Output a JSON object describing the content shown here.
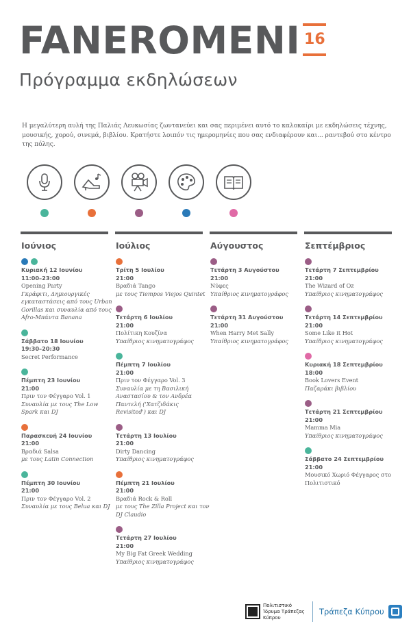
{
  "header": {
    "brand": "FANEROMENI",
    "year": "16",
    "subtitle": "Πρόγραμμα εκδηλώσεων"
  },
  "intro": "Η μεγαλύτερη αυλή της Παλιάς Λευκωσίας  ζωντανεύει και σας περιμένει αυτό το καλοκαίρι με εκδηλώσεις τέχνης, μουσικής, χορού, σινεμά, βιβλίου. Κρατήστε λοιπόν τις ημερομηνίες που σας ενδιαφέρουν και... ραντεβού στο κέντρο της πόλης.",
  "categories": [
    {
      "icon": "microphone-icon",
      "color": "#4ab59b"
    },
    {
      "icon": "dance-shoe-icon",
      "color": "#e8703a"
    },
    {
      "icon": "film-camera-icon",
      "color": "#9b5d86"
    },
    {
      "icon": "palette-icon",
      "color": "#2a7ab8"
    },
    {
      "icon": "book-icon",
      "color": "#e06aa6"
    }
  ],
  "columns": [
    {
      "month": "Ιούνιος",
      "events": [
        {
          "dots": [
            "#2a7ab8",
            "#4ab59b"
          ],
          "date": "Κυριακή 12 Ιουνίου",
          "time": "11:00–23:00",
          "title": "Opening Party",
          "sub": "Γκράφιτι, Δημιουργικές εγκαταστάσεις από τους Urban Gorillas και συναυλία από τους Afro-Μπάντα Banana"
        },
        {
          "dots": [
            "#4ab59b"
          ],
          "date": "Σάββατο 18 Ιουνίου",
          "time": "19:30–20:30",
          "title": "Secret Performance",
          "sub": ""
        },
        {
          "dots": [
            "#4ab59b"
          ],
          "date": "Πέμπτη 23 Ιουνίου",
          "time": "21:00",
          "title": "Πριν τον Φέγγαρο Vol. 1",
          "sub": "Συναυλία με τους The Low Spark και DJ"
        },
        {
          "dots": [
            "#e8703a"
          ],
          "date": "Παρασκευή 24 Ιουνίου",
          "time": "21:00",
          "title": "Βραδιά Salsa",
          "sub": "με τους Latin Connection"
        },
        {
          "dots": [
            "#4ab59b"
          ],
          "date": "Πέμπτη 30 Ιουνίου",
          "time": "21:00",
          "title": "Πριν τον Φέγγαρο Vol. 2",
          "sub": "Συναυλία με τους Belua και DJ"
        }
      ]
    },
    {
      "month": "Ιούλιος",
      "events": [
        {
          "dots": [
            "#e8703a"
          ],
          "date": "Τρίτη 5 Ιουλίου",
          "time": "21:00",
          "title": "Βραδιά Tango",
          "sub": "με τους Tiempos Viejos Quintet"
        },
        {
          "dots": [
            "#9b5d86"
          ],
          "date": "Τετάρτη 6 Ιουλίου",
          "time": "21:00",
          "title": "Πολίτικη Κουζίνα",
          "sub": "Υπαίθριος κινηματογράφος"
        },
        {
          "dots": [
            "#4ab59b"
          ],
          "date": "Πέμπτη 7 Ιουλίου",
          "time": "21:00",
          "title": "Πριν τον Φέγγαρο Vol. 3",
          "sub": "Συναυλία με τη Βασιλική Αναστασίου & τον Ανδρέα Παντελή ('Χατζιδάκις Revisited') και DJ"
        },
        {
          "dots": [
            "#9b5d86"
          ],
          "date": "Τετάρτη 13 Ιουλίου",
          "time": "21:00",
          "title": "Dirty Dancing",
          "sub": "Υπαίθριος κινηματογράφος"
        },
        {
          "dots": [
            "#e8703a"
          ],
          "date": "Πέμπτη 21 Ιουλίου",
          "time": "21:00",
          "title": "Βραδιά Rock & Roll",
          "sub": "με τους The Zilla Project και τον DJ Claudio"
        },
        {
          "dots": [
            "#9b5d86"
          ],
          "date": "Τετάρτη 27 Ιουλίου",
          "time": "21:00",
          "title": "My Big Fat Greek Wedding",
          "sub": "Υπαίθριος κινηματογράφος"
        }
      ]
    },
    {
      "month": "Αύγουστος",
      "events": [
        {
          "dots": [
            "#9b5d86"
          ],
          "date": "Τετάρτη 3 Αυγούστου",
          "time": "21:00",
          "title": "Νύφες",
          "sub": "Υπαίθριος κινηματογράφος"
        },
        {
          "dots": [
            "#9b5d86"
          ],
          "date": "Τετάρτη 31 Αυγούστου",
          "time": "21:00",
          "title": "When Harry Met Sally",
          "sub": "Υπαίθριος κινηματογράφος"
        }
      ]
    },
    {
      "month": "Σεπτέμβριος",
      "events": [
        {
          "dots": [
            "#9b5d86"
          ],
          "date": "Τετάρτη 7 Σεπτεμβρίου",
          "time": "21:00",
          "title": "The Wizard of Oz",
          "sub": "Υπαίθριος κινηματογράφος"
        },
        {
          "dots": [
            "#9b5d86"
          ],
          "date": "Τετάρτη 14 Σεπτεμβρίου",
          "time": "21:00",
          "title": "Some Like it Hot",
          "sub": "Υπαίθριος κινηματογράφος"
        },
        {
          "dots": [
            "#e06aa6"
          ],
          "date": "Κυριακή 18 Σεπτεμβρίου",
          "time": "18:00",
          "title": "Book Lovers Event",
          "sub": "Παζαράκι βιβλίου"
        },
        {
          "dots": [
            "#9b5d86"
          ],
          "date": "Τετάρτη 21 Σεπτεμβρίου",
          "time": "21:00",
          "title": "Mamma Mia",
          "sub": "Υπαίθριος κινηματογράφος"
        },
        {
          "dots": [
            "#4ab59b"
          ],
          "date": "Σάββατο 24 Σεπτεμβρίου",
          "time": "21:00",
          "title": "Μουσικό Χωριό Φέγγαρος στο Πολιτιστικό",
          "sub": ""
        }
      ]
    }
  ],
  "footer": {
    "foundation": "Πολιτιστικό Ίδρυμα Τράπεζας Κύπρου",
    "bank": "Τράπεζα Κύπρου"
  }
}
